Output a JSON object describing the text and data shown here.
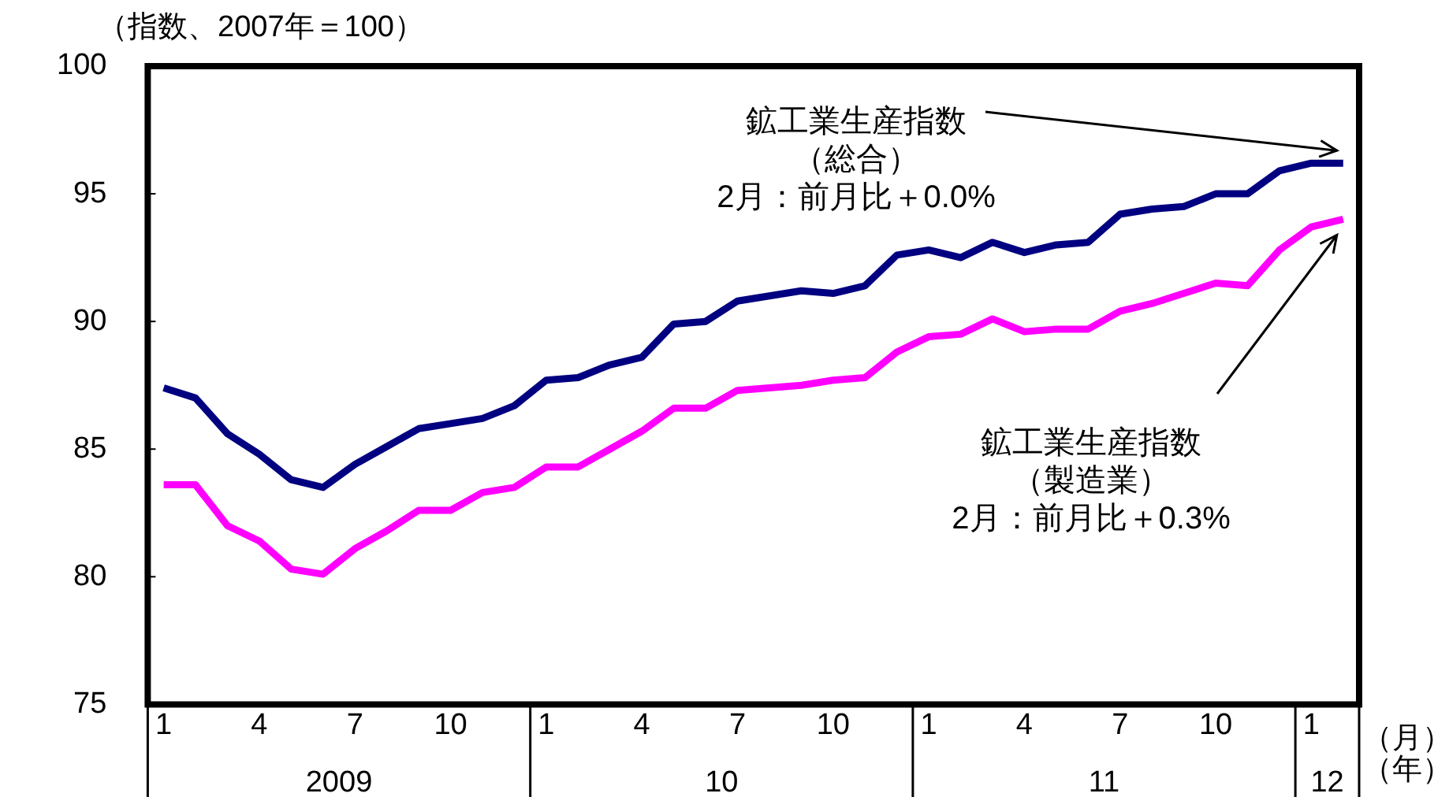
{
  "chart_data": {
    "type": "line",
    "ylabel": "（指数、2007年＝100）",
    "xlabel": "（月）",
    "categories": [
      "1",
      null,
      null,
      "4",
      null,
      null,
      "7",
      null,
      null,
      "10",
      null,
      null,
      "1",
      null,
      null,
      "4",
      null,
      null,
      "7",
      null,
      null,
      "10",
      null,
      null,
      "1",
      null,
      null,
      "4",
      null,
      null,
      "7",
      null,
      null,
      "10",
      null,
      null,
      "1",
      null
    ],
    "series": [
      {
        "color": "#000080",
        "values": [
          87.4,
          87.0,
          85.6,
          84.8,
          83.8,
          83.5,
          84.4,
          85.1,
          85.8,
          86.0,
          86.2,
          86.7,
          87.7,
          87.8,
          88.3,
          88.6,
          89.9,
          90.0,
          90.8,
          91.0,
          91.2,
          91.1,
          91.4,
          92.6,
          92.8,
          92.5,
          93.1,
          92.7,
          93.0,
          93.1,
          94.2,
          94.4,
          94.5,
          95.0,
          95.0,
          95.9,
          96.2,
          96.2
        ]
      },
      {
        "color": "#ff00ff",
        "values": [
          83.6,
          83.6,
          82.0,
          81.4,
          80.3,
          80.1,
          81.1,
          81.8,
          82.6,
          82.6,
          83.3,
          83.5,
          84.3,
          84.3,
          85.0,
          85.7,
          86.6,
          86.6,
          87.3,
          87.4,
          87.5,
          87.7,
          87.8,
          88.8,
          89.4,
          89.5,
          90.1,
          89.6,
          89.7,
          89.7,
          90.4,
          90.7,
          91.1,
          91.5,
          91.4,
          92.8,
          93.7,
          94.0
        ]
      }
    ],
    "ylim": [
      75,
      100
    ],
    "yticks": [
      75,
      80,
      85,
      90,
      95,
      100
    ],
    "grid": false,
    "legend": false,
    "marker": "none",
    "line_style": "solid",
    "annotations": [
      "鉱工業生産指数",
      "（総合）",
      "2月：前月比＋0.0%",
      "鉱工業生産指数",
      "（製造業）",
      "2月：前月比＋0.3%",
      "2009",
      "10",
      "11",
      "12",
      "（年）"
    ]
  }
}
